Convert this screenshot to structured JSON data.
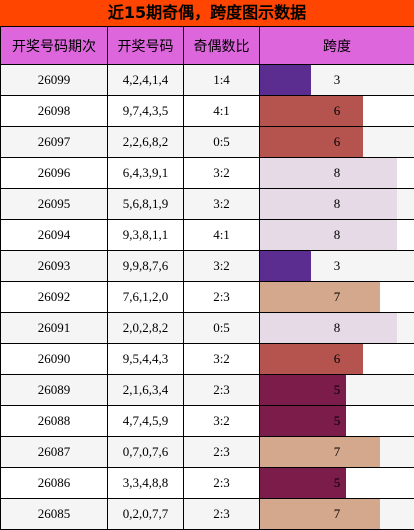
{
  "title": "近15期奇偶，跨度图示数据",
  "chart_data": {
    "type": "table",
    "columns": [
      "开奖号码期次",
      "开奖号码",
      "奇偶数比",
      "跨度"
    ],
    "span_max": 9,
    "span_colors": {
      "3": "#5b2d90",
      "5": "#7b1c4a",
      "6": "#b5544f",
      "7": "#d4a88c",
      "8": "#e6dae6"
    },
    "rows": [
      {
        "issue": "26099",
        "numbers": "4,2,4,1,4",
        "ratio": "1:4",
        "span": 3
      },
      {
        "issue": "26098",
        "numbers": "9,7,4,3,5",
        "ratio": "4:1",
        "span": 6
      },
      {
        "issue": "26097",
        "numbers": "2,2,6,8,2",
        "ratio": "0:5",
        "span": 6
      },
      {
        "issue": "26096",
        "numbers": "6,4,3,9,1",
        "ratio": "3:2",
        "span": 8
      },
      {
        "issue": "26095",
        "numbers": "5,6,8,1,9",
        "ratio": "3:2",
        "span": 8
      },
      {
        "issue": "26094",
        "numbers": "9,3,8,1,1",
        "ratio": "4:1",
        "span": 8
      },
      {
        "issue": "26093",
        "numbers": "9,9,8,7,6",
        "ratio": "3:2",
        "span": 3
      },
      {
        "issue": "26092",
        "numbers": "7,6,1,2,0",
        "ratio": "2:3",
        "span": 7
      },
      {
        "issue": "26091",
        "numbers": "2,0,2,8,2",
        "ratio": "0:5",
        "span": 8
      },
      {
        "issue": "26090",
        "numbers": "9,5,4,4,3",
        "ratio": "3:2",
        "span": 6
      },
      {
        "issue": "26089",
        "numbers": "2,1,6,3,4",
        "ratio": "2:3",
        "span": 5
      },
      {
        "issue": "26088",
        "numbers": "4,7,4,5,9",
        "ratio": "3:2",
        "span": 5
      },
      {
        "issue": "26087",
        "numbers": "0,7,0,7,6",
        "ratio": "2:3",
        "span": 7
      },
      {
        "issue": "26086",
        "numbers": "3,3,4,8,8",
        "ratio": "2:3",
        "span": 5
      },
      {
        "issue": "26085",
        "numbers": "0,2,0,7,7",
        "ratio": "2:3",
        "span": 7
      }
    ]
  }
}
